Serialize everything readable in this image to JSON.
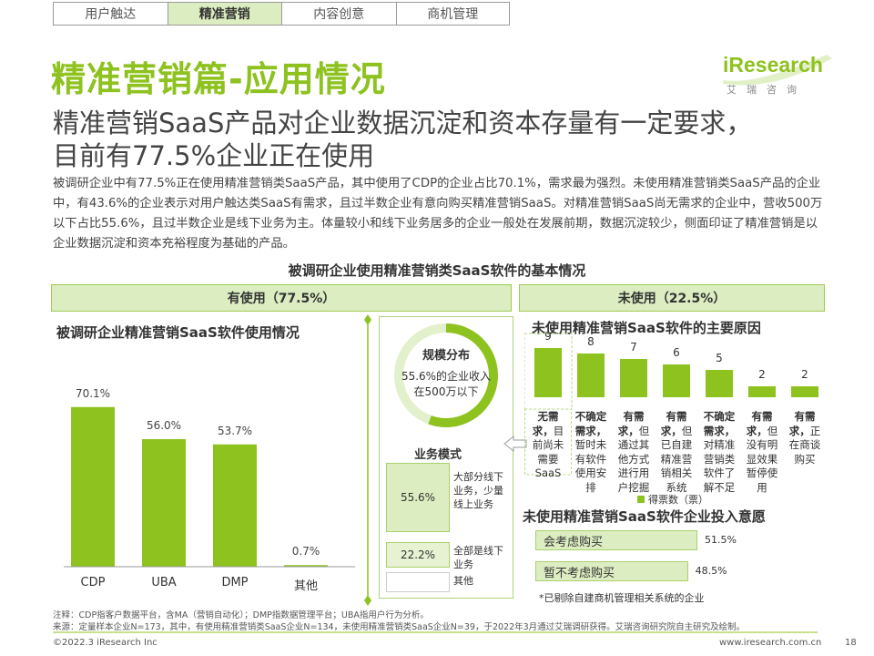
{
  "tabs": [
    {
      "label": "用户触达",
      "active": false
    },
    {
      "label": "精准营销",
      "active": true
    },
    {
      "label": "内容创意",
      "active": false
    },
    {
      "label": "商机管理",
      "active": false
    }
  ],
  "page_title": "精准营销篇-应用情况",
  "headline_line1": "精准营销SaaS产品对企业数据沉淀和资本存量有一定要求，",
  "headline_line2": "目前有77.5%企业正在使用",
  "intro": "被调研企业中有77.5%正在使用精准营销类SaaS产品，其中使用了CDP的企业占比70.1%，需求最为强烈。未使用精准营销类SaaS产品的企业中，有43.6%的企业表示对用户触达类SaaS有需求，且过半数企业有意向购买精准营销SaaS。对精准营销SaaS尚无需求的企业中，营收500万以下占比55.6%，且过半数企业是线下业务为主。体量较小和线下业务居多的企业一般处在发展前期，数据沉淀较少，侧面印证了精准营销是以企业数据沉淀和资本充裕程度为基础的产品。",
  "logo": {
    "text": "iResearch",
    "cn": "艾瑞咨询"
  },
  "chart_title": "被调研企业使用精准营销类SaaS软件的基本情况",
  "band_used": "有使用（77.5%）",
  "band_unused": "未使用（22.5%）",
  "colors": {
    "accent": "#8dc21f",
    "light": "#dcedc1",
    "border": "#9fcb55"
  },
  "chart_data": [
    {
      "type": "bar",
      "title": "被调研企业精准营销SaaS软件使用情况",
      "categories": [
        "CDP",
        "UBA",
        "DMP",
        "其他"
      ],
      "values": [
        70.1,
        56.0,
        53.7,
        0.7
      ],
      "value_labels": [
        "70.1%",
        "56.0%",
        "53.7%",
        "0.7%"
      ],
      "ylim": [
        0,
        80
      ]
    },
    {
      "type": "bar",
      "title": "未使用精准营销SaaS软件的主要原因",
      "categories": [
        {
          "bold": "无需求，",
          "rest": "目前尚未需要SaaS"
        },
        {
          "bold": "不确定需求，",
          "rest": "暂时未有软件使用安排"
        },
        {
          "bold": "有需求，",
          "rest": "但通过其他方式进行用户挖掘"
        },
        {
          "bold": "有需求，",
          "rest": "但已自建精准营销相关系统"
        },
        {
          "bold": "不确定需求，",
          "rest": "对精准营销类软件了解不足"
        },
        {
          "bold": "有需求，",
          "rest": "但没有明显效果暂停使用"
        },
        {
          "bold": "有需求，",
          "rest": "正在商谈购买"
        }
      ],
      "values": [
        9,
        8,
        7,
        6,
        5,
        2,
        2
      ],
      "legend": "得票数（票）",
      "ylim": [
        0,
        10
      ]
    },
    {
      "type": "bar",
      "title": "未使用精准营销SaaS软件企业投入意愿",
      "categories": [
        "会考虑购买",
        "暂不考虑购买"
      ],
      "values": [
        51.5,
        48.5
      ],
      "value_labels": [
        "51.5%",
        "48.5%"
      ],
      "note": "*已剔除自建商机管理相关系统的企业"
    },
    {
      "type": "pie",
      "title": "规模分布",
      "values": [
        55.6,
        44.4
      ],
      "center_text": "55.6%的企业收入在500万以下"
    },
    {
      "type": "bar",
      "title": "业务模式",
      "categories": [
        "大部分线下业务，少量线上业务",
        "全部是线下业务",
        "其他"
      ],
      "values": [
        55.6,
        22.2,
        0
      ],
      "value_labels": [
        "55.6%",
        "22.2%",
        ""
      ]
    }
  ],
  "notes": {
    "line1": "注释：CDP指客户数据平台，含MA（营销自动化）；DMP指数据管理平台；UBA指用户行为分析。",
    "line2": "来源：定量样本企业N=173，其中，有使用精准营销类SaaS企业N=134，未使用精准营销类SaaS企业N=39，于2022年3月通过艾瑞调研获得。艾瑞咨询研究院自主研究及绘制。"
  },
  "footer": {
    "copyright": "©2022.3 iResearch Inc",
    "url": "www.iresearch.com.cn",
    "page": "18"
  }
}
